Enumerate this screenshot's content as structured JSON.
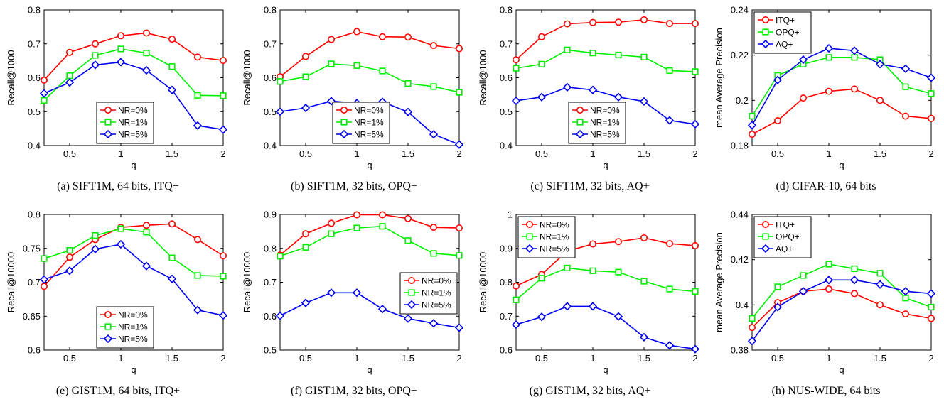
{
  "figure": {
    "colors": {
      "series_1": "#ff0000",
      "series_2": "#00ee00",
      "series_3": "#0000ee"
    },
    "markers": [
      "circle",
      "square",
      "diamond"
    ]
  },
  "chart_data": [
    {
      "id": "a",
      "type": "line",
      "caption": "(a)  SIFT1M, 64 bits, ITQ+",
      "xlabel": "q",
      "ylabel": "Recall@1000",
      "xlim": [
        0.25,
        2
      ],
      "ylim": [
        0.4,
        0.8
      ],
      "xticks": [
        0.5,
        1,
        1.5,
        2
      ],
      "xtick_labels": [
        "0.5",
        "1",
        "1.5",
        "2"
      ],
      "yticks": [
        0.4,
        0.5,
        0.6,
        0.7,
        0.8
      ],
      "ytick_labels": [
        "0.4",
        "0.5",
        "0.6",
        "0.7",
        "0.8"
      ],
      "legend_position": "bottom-center",
      "x": [
        0.25,
        0.5,
        0.75,
        1,
        1.25,
        1.5,
        1.75,
        2
      ],
      "series": [
        {
          "name": "NR=0%",
          "values": [
            0.593,
            0.675,
            0.7,
            0.724,
            0.732,
            0.714,
            0.661,
            0.651
          ]
        },
        {
          "name": "NR=1%",
          "values": [
            0.533,
            0.606,
            0.666,
            0.685,
            0.673,
            0.633,
            0.548,
            0.547
          ]
        },
        {
          "name": "NR=5%",
          "values": [
            0.554,
            0.586,
            0.638,
            0.646,
            0.622,
            0.564,
            0.459,
            0.447
          ]
        }
      ]
    },
    {
      "id": "b",
      "type": "line",
      "caption": "(b)  SIFT1M, 32 bits, OPQ+",
      "xlabel": "q",
      "ylabel": "Recall@1000",
      "xlim": [
        0.25,
        2
      ],
      "ylim": [
        0.4,
        0.8
      ],
      "xticks": [
        0.5,
        1,
        1.5,
        2
      ],
      "xtick_labels": [
        "0.5",
        "1",
        "1.5",
        "2"
      ],
      "yticks": [
        0.4,
        0.5,
        0.6,
        0.7,
        0.8
      ],
      "ytick_labels": [
        "0.4",
        "0.5",
        "0.6",
        "0.7",
        "0.8"
      ],
      "legend_position": "bottom-center",
      "x": [
        0.25,
        0.5,
        0.75,
        1,
        1.25,
        1.5,
        1.75,
        2
      ],
      "series": [
        {
          "name": "NR=0%",
          "values": [
            0.603,
            0.663,
            0.713,
            0.736,
            0.721,
            0.72,
            0.695,
            0.686
          ]
        },
        {
          "name": "NR=1%",
          "values": [
            0.589,
            0.603,
            0.641,
            0.636,
            0.62,
            0.583,
            0.574,
            0.557
          ]
        },
        {
          "name": "NR=5%",
          "values": [
            0.5,
            0.511,
            0.531,
            0.525,
            0.529,
            0.499,
            0.433,
            0.403
          ]
        }
      ]
    },
    {
      "id": "c",
      "type": "line",
      "caption": "(c)  SIFT1M, 32 bits, AQ+",
      "xlabel": "q",
      "ylabel": "Recall@1000",
      "xlim": [
        0.25,
        2
      ],
      "ylim": [
        0.4,
        0.8
      ],
      "xticks": [
        0.5,
        1,
        1.5,
        2
      ],
      "xtick_labels": [
        "0.5",
        "1",
        "1.5",
        "2"
      ],
      "yticks": [
        0.4,
        0.5,
        0.6,
        0.7,
        0.8
      ],
      "ytick_labels": [
        "0.4",
        "0.5",
        "0.6",
        "0.7",
        "0.8"
      ],
      "legend_position": "bottom-center",
      "x": [
        0.25,
        0.5,
        0.75,
        1,
        1.25,
        1.5,
        1.75,
        2
      ],
      "series": [
        {
          "name": "NR=0%",
          "values": [
            0.653,
            0.721,
            0.759,
            0.763,
            0.764,
            0.771,
            0.76,
            0.76
          ]
        },
        {
          "name": "NR=1%",
          "values": [
            0.628,
            0.64,
            0.682,
            0.673,
            0.667,
            0.661,
            0.621,
            0.618
          ]
        },
        {
          "name": "NR=5%",
          "values": [
            0.532,
            0.543,
            0.572,
            0.564,
            0.543,
            0.53,
            0.474,
            0.463
          ]
        }
      ]
    },
    {
      "id": "d",
      "type": "line",
      "caption": "(d)  CIFAR-10, 64 bits",
      "xlabel": "q",
      "ylabel": "mean Average Precision",
      "xlim": [
        0.25,
        2
      ],
      "ylim": [
        0.18,
        0.24
      ],
      "xticks": [
        0.5,
        1,
        1.5,
        2
      ],
      "xtick_labels": [
        "0.5",
        "1",
        "1.5",
        "2"
      ],
      "yticks": [
        0.18,
        0.2,
        0.22,
        0.24
      ],
      "ytick_labels": [
        "0.18",
        "0.2",
        "0.22",
        "0.24"
      ],
      "legend_position": "top-left",
      "x": [
        0.25,
        0.5,
        0.75,
        1,
        1.25,
        1.5,
        1.75,
        2
      ],
      "series": [
        {
          "name": "ITQ+",
          "values": [
            0.185,
            0.191,
            0.201,
            0.204,
            0.205,
            0.2,
            0.193,
            0.192
          ]
        },
        {
          "name": "OPQ+",
          "values": [
            0.193,
            0.211,
            0.216,
            0.219,
            0.219,
            0.218,
            0.206,
            0.203
          ]
        },
        {
          "name": "AQ+",
          "values": [
            0.189,
            0.209,
            0.218,
            0.223,
            0.222,
            0.216,
            0.214,
            0.21
          ]
        }
      ]
    },
    {
      "id": "e",
      "type": "line",
      "caption": "(e)  GIST1M, 64 bits, ITQ+",
      "xlabel": "q",
      "ylabel": "Recall@10000",
      "xlim": [
        0.25,
        2
      ],
      "ylim": [
        0.6,
        0.8
      ],
      "xticks": [
        0.5,
        1,
        1.5,
        2
      ],
      "xtick_labels": [
        "0.5",
        "1",
        "1.5",
        "2"
      ],
      "yticks": [
        0.6,
        0.65,
        0.7,
        0.75,
        0.8
      ],
      "ytick_labels": [
        "0.6",
        "0.65",
        "0.7",
        "0.75",
        "0.8"
      ],
      "legend_position": "bottom-center",
      "x": [
        0.25,
        0.5,
        0.75,
        1,
        1.25,
        1.5,
        1.75,
        2
      ],
      "series": [
        {
          "name": "NR=0%",
          "values": [
            0.694,
            0.737,
            0.763,
            0.781,
            0.784,
            0.786,
            0.763,
            0.739
          ]
        },
        {
          "name": "NR=1%",
          "values": [
            0.735,
            0.747,
            0.769,
            0.779,
            0.774,
            0.736,
            0.71,
            0.709
          ]
        },
        {
          "name": "NR=5%",
          "values": [
            0.704,
            0.717,
            0.749,
            0.756,
            0.724,
            0.705,
            0.659,
            0.651
          ]
        }
      ]
    },
    {
      "id": "f",
      "type": "line",
      "caption": "(f)  GIST1M, 32 bits, OPQ+",
      "xlabel": "q",
      "ylabel": "Recall@10000",
      "xlim": [
        0.25,
        2
      ],
      "ylim": [
        0.5,
        0.9
      ],
      "xticks": [
        0.5,
        1,
        1.5,
        2
      ],
      "xtick_labels": [
        "0.5",
        "1",
        "1.5",
        "2"
      ],
      "yticks": [
        0.5,
        0.6,
        0.7,
        0.8,
        0.9
      ],
      "ytick_labels": [
        "0.5",
        "0.6",
        "0.7",
        "0.8",
        "0.9"
      ],
      "legend_position": "middle-right",
      "x": [
        0.25,
        0.5,
        0.75,
        1,
        1.25,
        1.5,
        1.75,
        2
      ],
      "series": [
        {
          "name": "NR=0%",
          "values": [
            0.78,
            0.843,
            0.874,
            0.899,
            0.899,
            0.888,
            0.862,
            0.86
          ]
        },
        {
          "name": "NR=1%",
          "values": [
            0.777,
            0.803,
            0.843,
            0.86,
            0.865,
            0.823,
            0.785,
            0.779
          ]
        },
        {
          "name": "NR=5%",
          "values": [
            0.601,
            0.639,
            0.669,
            0.669,
            0.621,
            0.593,
            0.579,
            0.566
          ]
        }
      ]
    },
    {
      "id": "g",
      "type": "line",
      "caption": "(g)  GIST1M, 32 bits, AQ+",
      "xlabel": "q",
      "ylabel": "Recall@10000",
      "xlim": [
        0.25,
        2
      ],
      "ylim": [
        0.6,
        1
      ],
      "xticks": [
        0.5,
        1,
        1.5,
        2
      ],
      "xtick_labels": [
        "0.5",
        "1",
        "1.5",
        "2"
      ],
      "yticks": [
        0.6,
        0.7,
        0.8,
        0.9,
        1
      ],
      "ytick_labels": [
        "0.6",
        "0.7",
        "0.8",
        "0.9",
        "1"
      ],
      "legend_position": "top-left",
      "x": [
        0.25,
        0.5,
        0.75,
        1,
        1.25,
        1.5,
        1.75,
        2
      ],
      "series": [
        {
          "name": "NR=0%",
          "values": [
            0.789,
            0.823,
            0.892,
            0.913,
            0.92,
            0.931,
            0.914,
            0.908
          ]
        },
        {
          "name": "NR=1%",
          "values": [
            0.748,
            0.812,
            0.842,
            0.834,
            0.83,
            0.803,
            0.78,
            0.773
          ]
        },
        {
          "name": "NR=5%",
          "values": [
            0.675,
            0.698,
            0.729,
            0.729,
            0.699,
            0.638,
            0.614,
            0.603
          ]
        }
      ]
    },
    {
      "id": "h",
      "type": "line",
      "caption": "(h)  NUS-WIDE, 64 bits",
      "xlabel": "q",
      "ylabel": "mean Average Precision",
      "xlim": [
        0.25,
        2
      ],
      "ylim": [
        0.38,
        0.44
      ],
      "xticks": [
        0.5,
        1,
        1.5,
        2
      ],
      "xtick_labels": [
        "0.5",
        "1",
        "1.5",
        "2"
      ],
      "yticks": [
        0.38,
        0.4,
        0.42,
        0.44
      ],
      "ytick_labels": [
        "0.38",
        "0.4",
        "0.42",
        "0.44"
      ],
      "legend_position": "top-left",
      "x": [
        0.25,
        0.5,
        0.75,
        1,
        1.25,
        1.5,
        1.75,
        2
      ],
      "series": [
        {
          "name": "ITQ+",
          "values": [
            0.39,
            0.401,
            0.406,
            0.407,
            0.405,
            0.4,
            0.396,
            0.394
          ]
        },
        {
          "name": "OPQ+",
          "values": [
            0.394,
            0.408,
            0.413,
            0.418,
            0.416,
            0.414,
            0.403,
            0.399
          ]
        },
        {
          "name": "AQ+",
          "values": [
            0.384,
            0.399,
            0.406,
            0.411,
            0.411,
            0.409,
            0.406,
            0.405
          ]
        }
      ]
    }
  ]
}
